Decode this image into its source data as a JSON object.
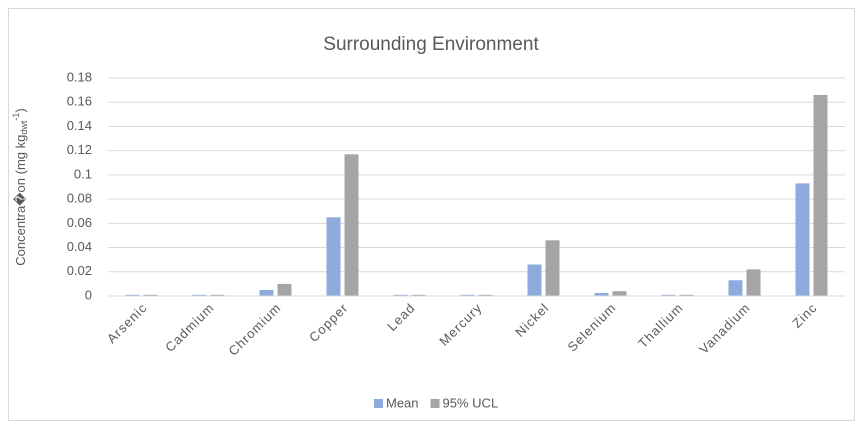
{
  "chart_data": {
    "type": "bar",
    "title": "Surrounding Environment",
    "ylabel": [
      "Concentra�on (mg kg",
      "dwt",
      "-1",
      ")"
    ],
    "categories": [
      "Arsenic",
      "Cadmium",
      "Chromium",
      "Copper",
      "Lead",
      "Mercury",
      "Nickel",
      "Selenium",
      "Thallium",
      "Vanadium",
      "Zinc"
    ],
    "series": [
      {
        "name": "Mean",
        "color": "#8faadc",
        "values": [
          0.001,
          0.001,
          0.005,
          0.065,
          0.001,
          0.001,
          0.026,
          0.0025,
          0.001,
          0.013,
          0.093
        ]
      },
      {
        "name": "95% UCL",
        "color": "#a5a5a5",
        "values": [
          0.001,
          0.001,
          0.01,
          0.117,
          0.001,
          0.001,
          0.046,
          0.004,
          0.001,
          0.022,
          0.166
        ]
      }
    ],
    "ylim": [
      0,
      0.18
    ],
    "yticks": [
      0,
      0.02,
      0.04,
      0.06,
      0.08,
      0.1,
      0.12,
      0.14,
      0.16,
      0.18
    ],
    "grid": true,
    "legend": "bottom"
  }
}
